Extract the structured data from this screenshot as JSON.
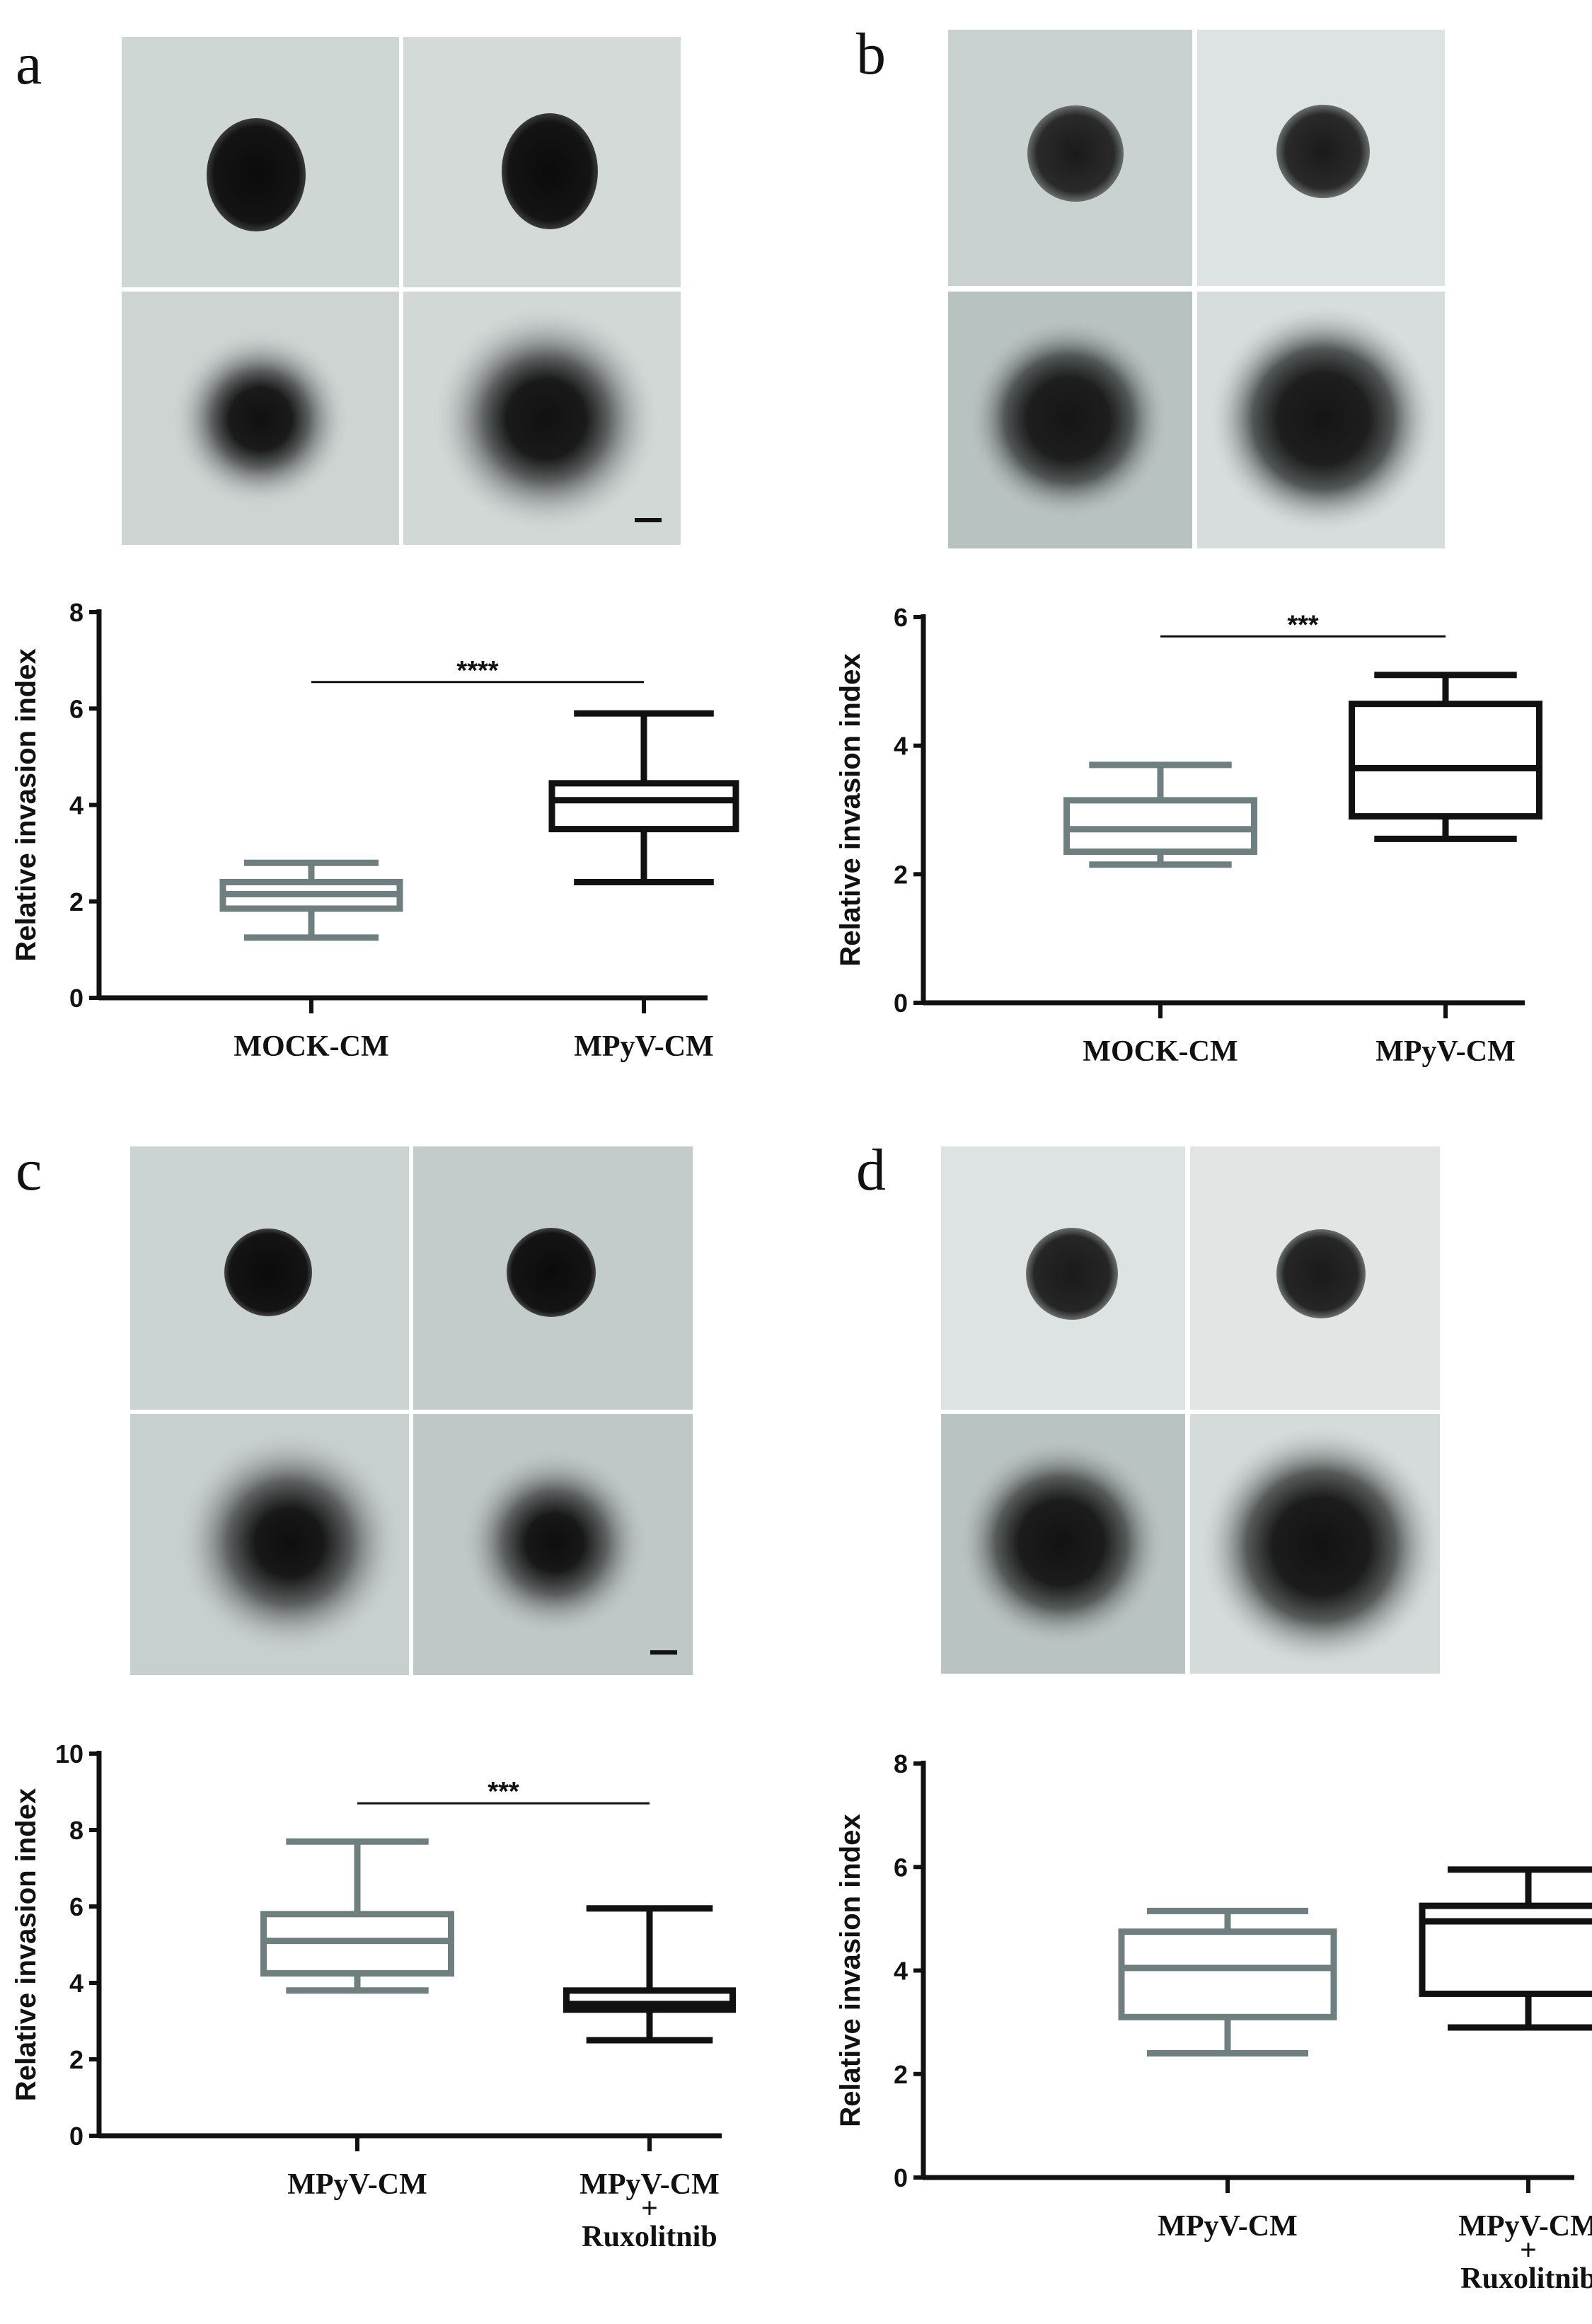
{
  "panels": {
    "a": {
      "letter": "a"
    },
    "b": {
      "letter": "b"
    },
    "c": {
      "letter": "c"
    },
    "d": {
      "letter": "d"
    }
  },
  "chart_data": [
    {
      "panel": "a",
      "type": "boxplot",
      "ylabel": "Relative invasion index",
      "ylim": [
        0,
        8
      ],
      "yticks": [
        0,
        2,
        4,
        6,
        8
      ],
      "categories": [
        "MOCK-CM",
        "MPyV-CM"
      ],
      "boxes": [
        {
          "category": "MOCK-CM",
          "color": "#6f7f80",
          "min": 1.25,
          "q1": 1.85,
          "median": 2.15,
          "q3": 2.4,
          "max": 2.8
        },
        {
          "category": "MPyV-CM",
          "color": "#111111",
          "min": 2.4,
          "q1": 3.5,
          "median": 4.1,
          "q3": 4.45,
          "max": 5.9
        }
      ],
      "significance": {
        "label": "****",
        "from": "MOCK-CM",
        "to": "MPyV-CM",
        "y": 6.55
      }
    },
    {
      "panel": "b",
      "type": "boxplot",
      "ylabel": "Relative invasion index",
      "ylim": [
        0,
        6
      ],
      "yticks": [
        0,
        2,
        4,
        6
      ],
      "categories": [
        "MOCK-CM",
        "MPyV-CM"
      ],
      "boxes": [
        {
          "category": "MOCK-CM",
          "color": "#6f7f80",
          "min": 2.15,
          "q1": 2.35,
          "median": 2.7,
          "q3": 3.15,
          "max": 3.7
        },
        {
          "category": "MPyV-CM",
          "color": "#111111",
          "min": 2.55,
          "q1": 2.9,
          "median": 3.65,
          "q3": 4.65,
          "max": 5.1
        }
      ],
      "significance": {
        "label": "***",
        "from": "MOCK-CM",
        "to": "MPyV-CM",
        "y": 5.7
      }
    },
    {
      "panel": "c",
      "type": "boxplot",
      "ylabel": "Relative invasion index",
      "ylim": [
        0,
        10
      ],
      "yticks": [
        0,
        2,
        4,
        6,
        8,
        10
      ],
      "categories": [
        "MPyV-CM",
        "MPyV-CM\n+\nRuxolitnib"
      ],
      "boxes": [
        {
          "category": "MPyV-CM",
          "color": "#6f7f80",
          "min": 3.8,
          "q1": 4.25,
          "median": 5.1,
          "q3": 5.8,
          "max": 7.7
        },
        {
          "category": "MPyV-CM + Ruxolitnib",
          "color": "#111111",
          "min": 2.5,
          "q1": 3.3,
          "median": 3.45,
          "q3": 3.8,
          "max": 5.95
        }
      ],
      "significance": {
        "label": "***",
        "from": "MPyV-CM",
        "to": "MPyV-CM + Ruxolitnib",
        "y": 8.7
      }
    },
    {
      "panel": "d",
      "type": "boxplot",
      "ylabel": "Relative invasion index",
      "ylim": [
        0,
        8
      ],
      "yticks": [
        0,
        2,
        4,
        6,
        8
      ],
      "categories": [
        "MPyV-CM",
        "MPyV-CM\n+\nRuxolitnib"
      ],
      "boxes": [
        {
          "category": "MPyV-CM",
          "color": "#6f7f80",
          "min": 2.4,
          "q1": 3.1,
          "median": 4.05,
          "q3": 4.75,
          "max": 5.15
        },
        {
          "category": "MPyV-CM + Ruxolitnib",
          "color": "#111111",
          "min": 2.9,
          "q1": 3.55,
          "median": 4.95,
          "q3": 5.25,
          "max": 5.95
        }
      ],
      "significance": null
    }
  ]
}
